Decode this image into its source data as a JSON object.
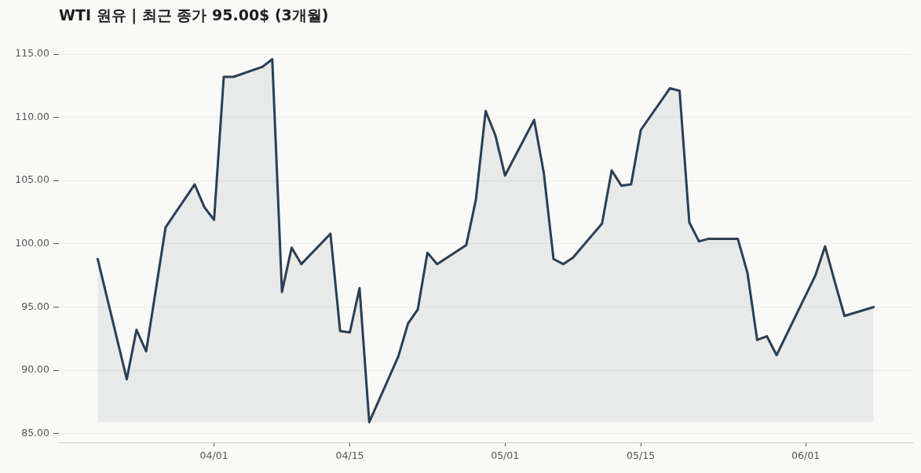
{
  "chart_data": {
    "type": "area",
    "title": "WTI 원유 | 최근 종가 95.00$ (3개월)",
    "x": [
      "--03-20",
      "--03-23",
      "--03-24",
      "--03-25",
      "--03-27",
      "--03-30",
      "--03-31",
      "--04-01",
      "--04-02",
      "--04-03",
      "--04-06",
      "--04-07",
      "--04-08",
      "--04-09",
      "--04-10",
      "--04-13",
      "--04-14",
      "--04-15",
      "--04-16",
      "--04-17",
      "--04-20",
      "--04-21",
      "--04-22",
      "--04-23",
      "--04-24",
      "--04-27",
      "--04-28",
      "--04-29",
      "--04-30",
      "--05-01",
      "--05-04",
      "--05-05",
      "--05-06",
      "--05-07",
      "--05-08",
      "--05-11",
      "--05-12",
      "--05-13",
      "--05-14",
      "--05-15",
      "--05-18",
      "--05-19",
      "--05-20",
      "--05-21",
      "--05-22",
      "--05-25",
      "--05-26",
      "--05-27",
      "--05-28",
      "--05-29",
      "--06-02",
      "--06-03",
      "--06-04",
      "--06-05",
      "--06-08"
    ],
    "values": [
      98.8,
      89.3,
      93.2,
      91.5,
      101.3,
      104.7,
      102.9,
      101.9,
      113.2,
      113.2,
      114.0,
      114.6,
      96.2,
      99.7,
      98.4,
      100.8,
      93.1,
      93.0,
      96.5,
      85.9,
      91.1,
      93.7,
      94.8,
      99.3,
      98.4,
      99.9,
      103.5,
      110.5,
      108.6,
      105.4,
      109.8,
      105.6,
      98.8,
      98.4,
      98.9,
      101.6,
      105.8,
      104.6,
      104.7,
      109.0,
      112.3,
      112.1,
      101.7,
      100.2,
      100.4,
      100.4,
      97.7,
      92.4,
      92.7,
      91.2,
      97.5,
      99.8,
      97.0,
      94.3,
      95.0
    ],
    "color": "#2c3e50",
    "xlim": [
      "--03-16",
      "--06-12"
    ],
    "xticks": [
      {
        "value": "--04-01",
        "label": "04/01"
      },
      {
        "value": "--04-15",
        "label": "04/15"
      },
      {
        "value": "--05-01",
        "label": "05/01"
      },
      {
        "value": "--05-15",
        "label": "05/15"
      },
      {
        "value": "--06-01",
        "label": "06/01"
      }
    ],
    "ylim": [
      84.3,
      115
    ],
    "yticks": [
      {
        "value": 85,
        "label": "85.00"
      },
      {
        "value": 90,
        "label": "90.00"
      },
      {
        "value": 95,
        "label": "95.00"
      },
      {
        "value": 100,
        "label": "100.00"
      },
      {
        "value": 105,
        "label": "105.00"
      },
      {
        "value": 110,
        "label": "110.00"
      },
      {
        "value": 115,
        "label": "115.00"
      }
    ],
    "grid": "y"
  }
}
